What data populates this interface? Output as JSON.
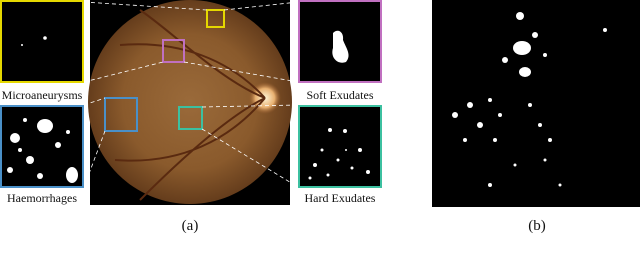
{
  "panel_a": {
    "caption": "(a)",
    "insets": [
      {
        "label": "Microaneurysms"
      },
      {
        "label": "Soft Exudates"
      },
      {
        "label": "Haemorrhages"
      },
      {
        "label": "Hard Exudates"
      }
    ]
  },
  "panel_b": {
    "caption": "(b)"
  }
}
